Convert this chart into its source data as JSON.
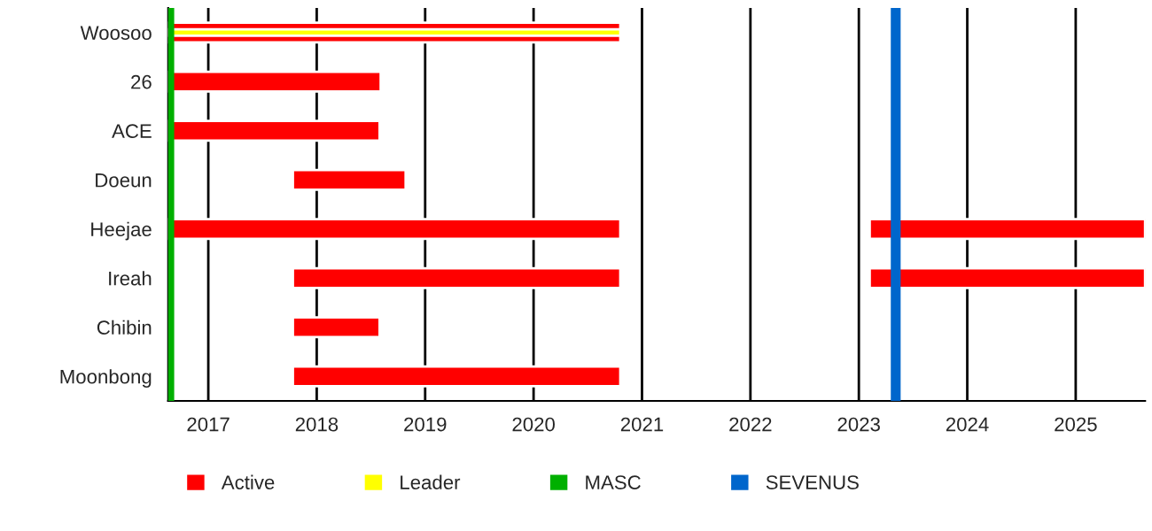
{
  "chart_data": {
    "type": "bar",
    "orientation": "horizontal",
    "categories": [
      "Woosoo",
      "26",
      "ACE",
      "Doeun",
      "Heejae",
      "Ireah",
      "Chibin",
      "Moonbong"
    ],
    "series": [
      {
        "name": "Active",
        "color": "#ff0000",
        "base": [
          2016.63,
          2016.63,
          2016.63,
          2017.78,
          2016.63,
          2017.78,
          2017.78,
          2017.78
        ],
        "values": [
          4.17,
          1.96,
          1.95,
          1.04,
          4.17,
          3.02,
          0.8,
          3.02
        ]
      },
      {
        "color": "#ff0000",
        "base": [
          null,
          null,
          null,
          null,
          2023.1,
          2023.1,
          null,
          null
        ],
        "values": [
          null,
          null,
          null,
          null,
          2.54,
          2.54,
          null,
          null
        ]
      },
      {
        "name": "Leader",
        "color": "#ffff00",
        "base": [
          2016.63,
          null,
          null,
          null,
          null,
          null,
          null,
          null
        ],
        "values": [
          4.17,
          null,
          null,
          null,
          null,
          null,
          null,
          null
        ]
      }
    ],
    "ref_lines": [
      {
        "axis": "x",
        "value": 2016.64,
        "label": "MASC",
        "color": "#00b000"
      },
      {
        "axis": "x",
        "value": 2023.34,
        "label": "SEVENUS",
        "color": "#0066cc"
      }
    ],
    "xlim": [
      2016.63,
      2025.64
    ],
    "xticks": [
      2017,
      2018,
      2019,
      2020,
      2021,
      2022,
      2023,
      2024,
      2025
    ],
    "grid": "x",
    "legend": "bottom"
  }
}
